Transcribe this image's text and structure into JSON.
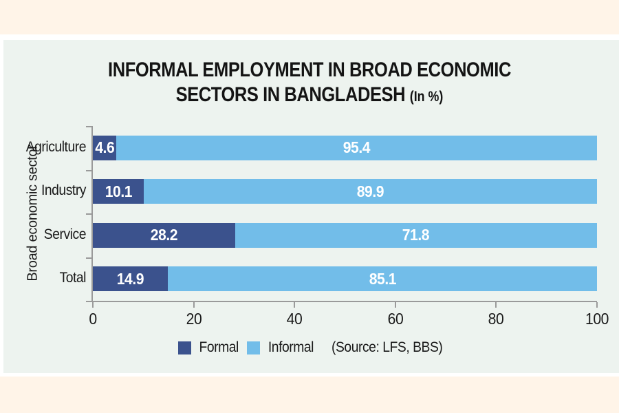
{
  "chart_data": {
    "type": "bar",
    "orientation": "horizontal",
    "stacked": true,
    "title_line1": "INFORMAL EMPLOYMENT IN BROAD ECONOMIC",
    "title_line2": "SECTORS IN BANGLADESH",
    "title_suffix": "(In %)",
    "categories": [
      "Agriculture",
      "Industry",
      "Service",
      "Total"
    ],
    "series": [
      {
        "name": "Formal",
        "color": "#3B528D",
        "values": [
          4.6,
          10.1,
          28.2,
          14.9
        ]
      },
      {
        "name": "Informal",
        "color": "#72BDE9",
        "values": [
          95.4,
          89.9,
          71.8,
          85.1
        ]
      }
    ],
    "xlabel": "",
    "ylabel": "Broad economic sector",
    "xlim": [
      0,
      100
    ],
    "x_ticks": [
      0,
      20,
      40,
      60,
      80,
      100
    ],
    "legend_position": "bottom",
    "source_note": "(Source: LFS, BBS)",
    "grid": false
  },
  "colors": {
    "page_background": "#FFF4E8",
    "panel_background": "#EDF3EF",
    "panel_border": "#FFFFFF",
    "axis": "#9A9A9A",
    "text": "#1A1A1A",
    "bar_value_text": "#FFFFFF"
  }
}
